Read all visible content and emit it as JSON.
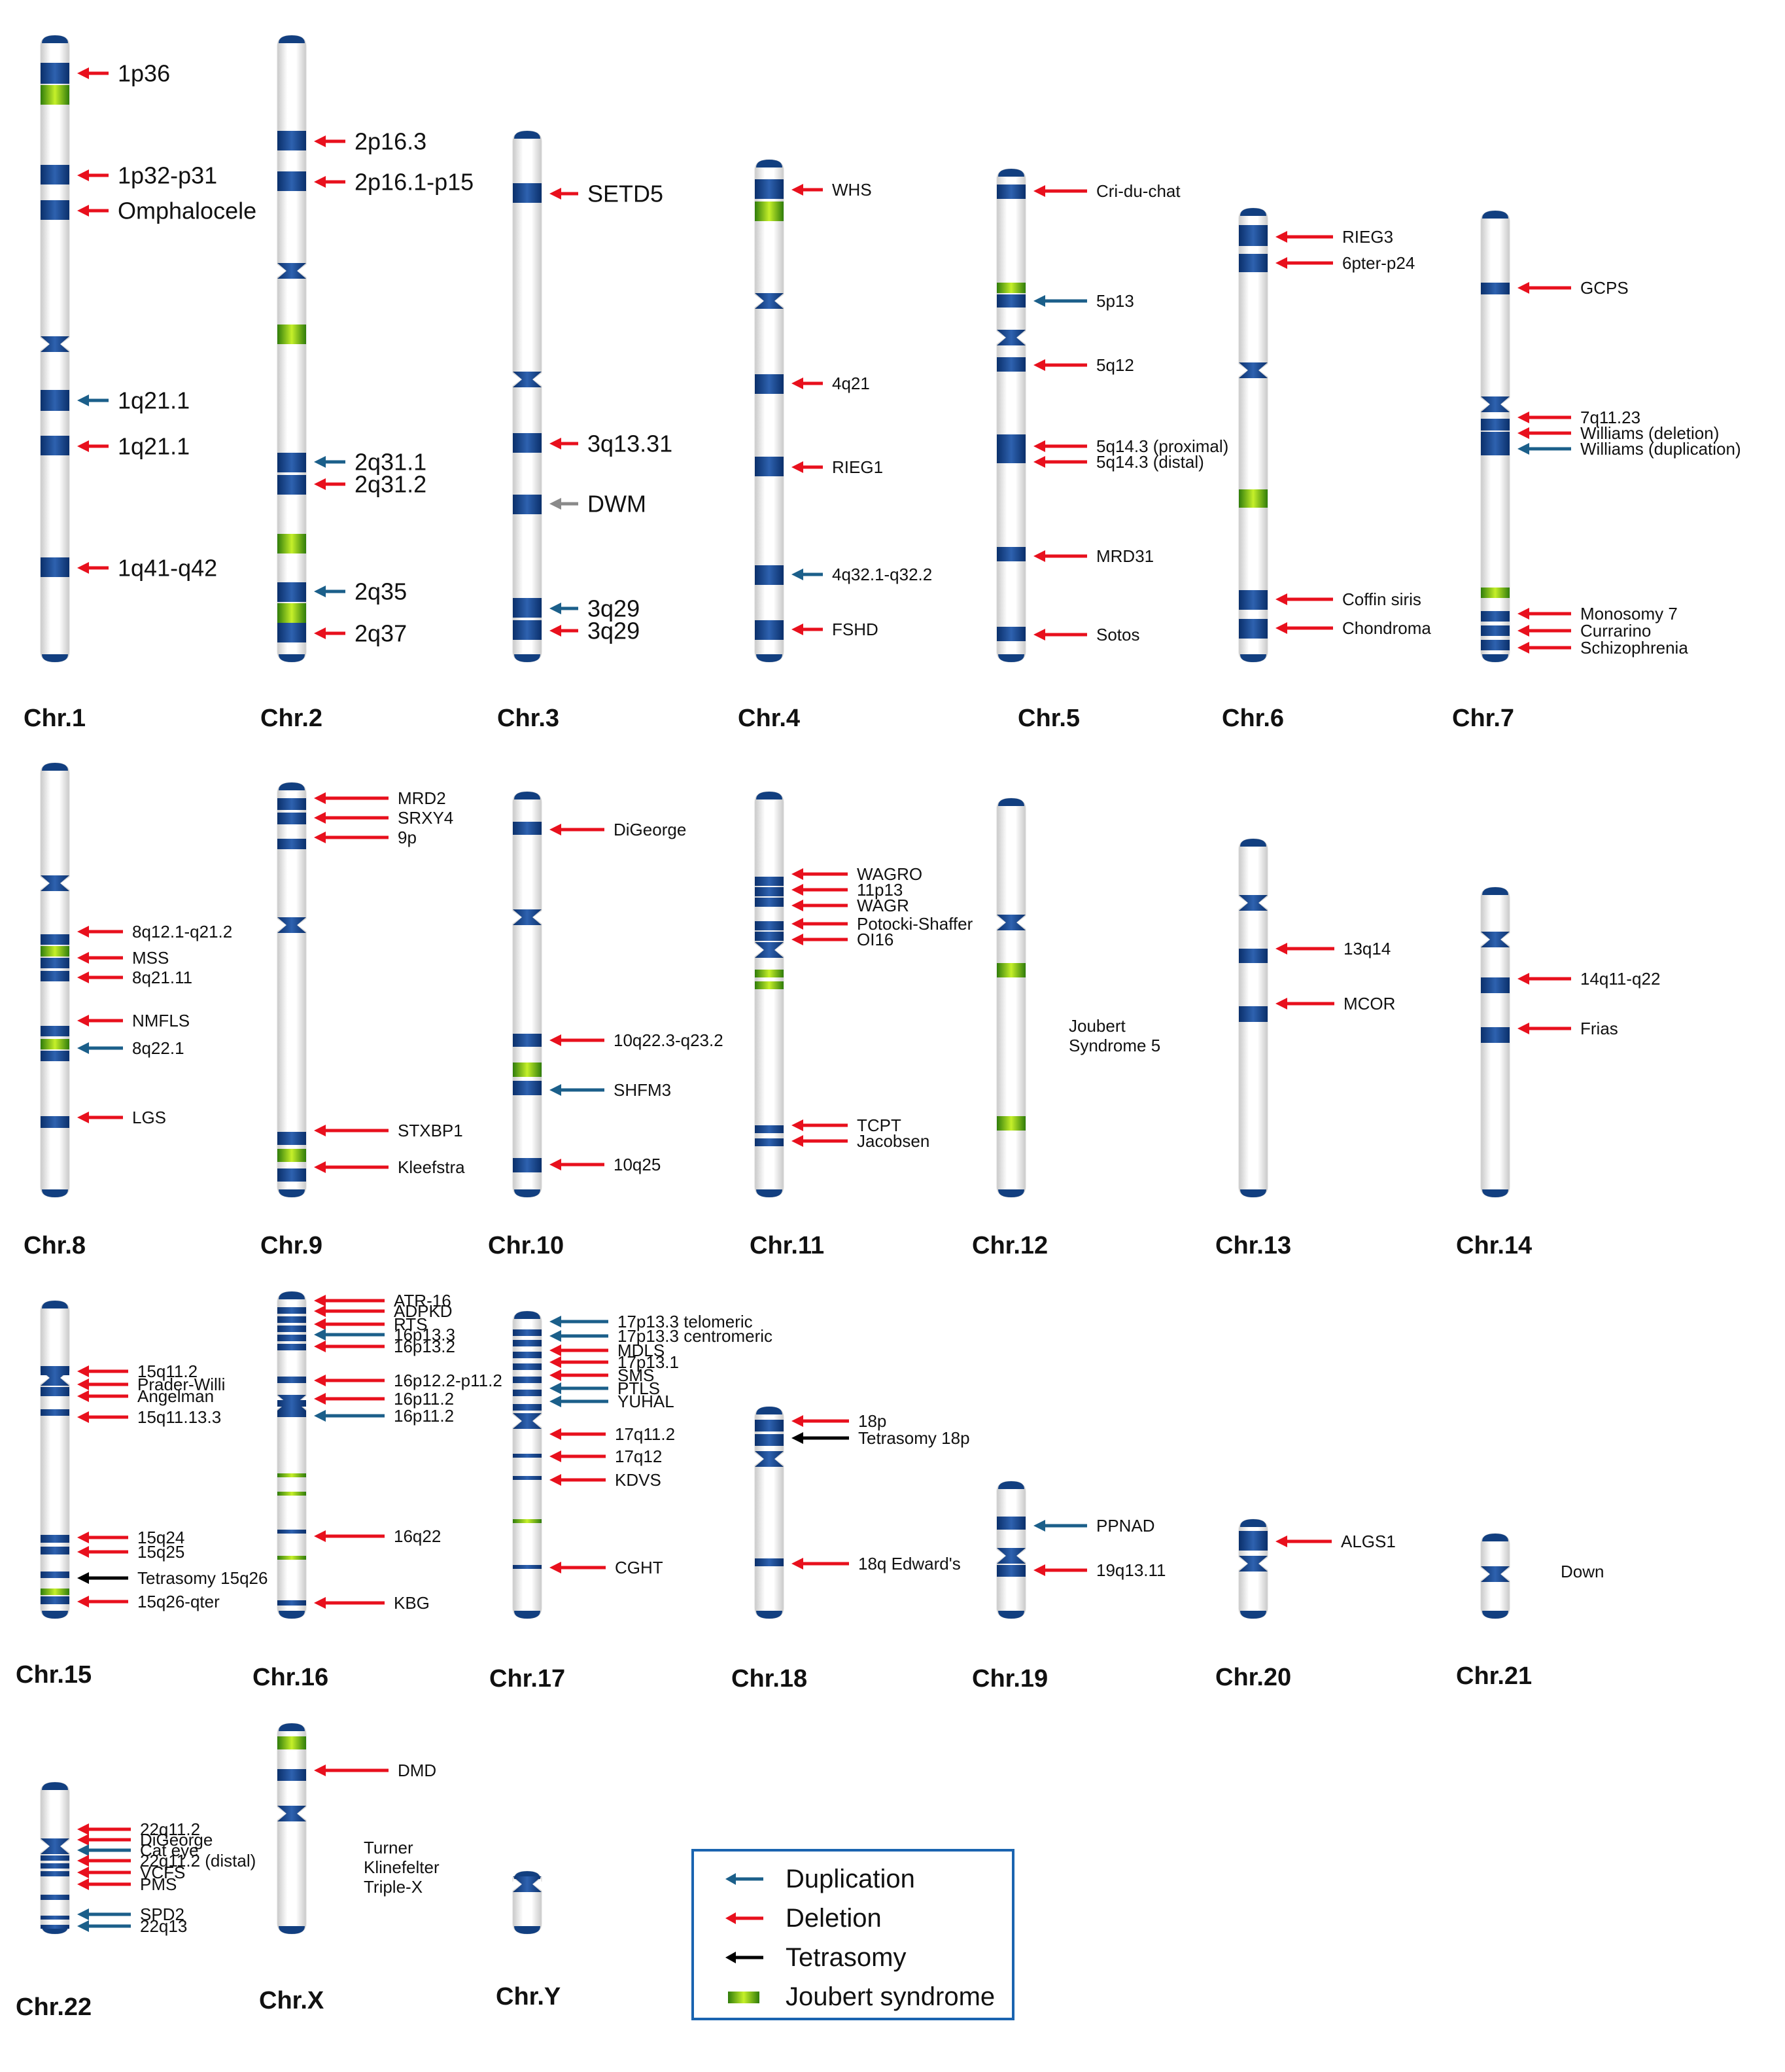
{
  "colors": {
    "duplication": "#1b5f8a",
    "deletion": "#e8101d",
    "tetrasomy": "#000000",
    "joubert": "#6bbf10",
    "band": "#0f3a78",
    "legend_border": "#1a64b0"
  },
  "legend": [
    {
      "type": "duplication",
      "label": "Duplication"
    },
    {
      "type": "deletion",
      "label": "Deletion"
    },
    {
      "type": "tetrasomy",
      "label": "Tetrasomy"
    },
    {
      "type": "joubert",
      "label": "Joubert syndrome"
    }
  ],
  "chromosomes": [
    {
      "name": "Chr.1",
      "labels": [
        {
          "text": "1p36",
          "type": "deletion"
        },
        {
          "text": "1p32-p31",
          "type": "deletion"
        },
        {
          "text": "Omphalocele",
          "type": "deletion"
        },
        {
          "text": "1q21.1",
          "type": "duplication"
        },
        {
          "text": "1q21.1",
          "type": "deletion"
        },
        {
          "text": "1q41-q42",
          "type": "deletion"
        }
      ]
    },
    {
      "name": "Chr.2",
      "labels": [
        {
          "text": "2p16.3",
          "type": "deletion"
        },
        {
          "text": "2p16.1-p15",
          "type": "deletion"
        },
        {
          "text": "2q31.1",
          "type": "duplication"
        },
        {
          "text": "2q31.2",
          "type": "deletion"
        },
        {
          "text": "2q35",
          "type": "duplication"
        },
        {
          "text": "2q37",
          "type": "deletion"
        }
      ]
    },
    {
      "name": "Chr.3",
      "labels": [
        {
          "text": "SETD5",
          "type": "deletion"
        },
        {
          "text": "3q13.31",
          "type": "deletion"
        },
        {
          "text": "DWM",
          "type": "other"
        },
        {
          "text": "3q29",
          "type": "duplication"
        },
        {
          "text": "3q29",
          "type": "deletion"
        }
      ]
    },
    {
      "name": "Chr.4",
      "labels": [
        {
          "text": "WHS",
          "type": "deletion"
        },
        {
          "text": "4q21",
          "type": "deletion"
        },
        {
          "text": "RIEG1",
          "type": "deletion"
        },
        {
          "text": "4q32.1-q32.2",
          "type": "duplication"
        },
        {
          "text": "FSHD",
          "type": "deletion"
        }
      ]
    },
    {
      "name": "Chr.5",
      "labels": [
        {
          "text": "Cri-du-chat",
          "type": "deletion"
        },
        {
          "text": "5p13",
          "type": "duplication"
        },
        {
          "text": "5q12",
          "type": "deletion"
        },
        {
          "text": "5q14.3 (proximal)",
          "type": "deletion"
        },
        {
          "text": "5q14.3 (distal)",
          "type": "deletion"
        },
        {
          "text": "MRD31",
          "type": "deletion"
        },
        {
          "text": "Sotos",
          "type": "deletion"
        }
      ]
    },
    {
      "name": "Chr.6",
      "labels": [
        {
          "text": "RIEG3",
          "type": "deletion"
        },
        {
          "text": "6pter-p24",
          "type": "deletion"
        },
        {
          "text": "Coffin siris",
          "type": "deletion"
        },
        {
          "text": "Chondroma",
          "type": "deletion"
        }
      ]
    },
    {
      "name": "Chr.7",
      "labels": [
        {
          "text": "GCPS",
          "type": "deletion"
        },
        {
          "text": "7q11.23",
          "type": "deletion"
        },
        {
          "text": "Williams (deletion)",
          "type": "deletion"
        },
        {
          "text": "Williams (duplication)",
          "type": "duplication"
        },
        {
          "text": "Monosomy 7",
          "type": "deletion"
        },
        {
          "text": "Currarino",
          "type": "deletion"
        },
        {
          "text": "Schizophrenia",
          "type": "deletion"
        }
      ]
    },
    {
      "name": "Chr.8",
      "labels": [
        {
          "text": "8q12.1-q21.2",
          "type": "deletion"
        },
        {
          "text": "MSS",
          "type": "deletion"
        },
        {
          "text": "8q21.11",
          "type": "deletion"
        },
        {
          "text": "NMFLS",
          "type": "deletion"
        },
        {
          "text": "8q22.1",
          "type": "duplication"
        },
        {
          "text": "LGS",
          "type": "deletion"
        }
      ]
    },
    {
      "name": "Chr.9",
      "labels": [
        {
          "text": "MRD2",
          "type": "deletion"
        },
        {
          "text": "SRXY4",
          "type": "deletion"
        },
        {
          "text": "9p",
          "type": "deletion"
        },
        {
          "text": "STXBP1",
          "type": "deletion"
        },
        {
          "text": "Kleefstra",
          "type": "deletion"
        }
      ]
    },
    {
      "name": "Chr.10",
      "labels": [
        {
          "text": "DiGeorge",
          "type": "deletion"
        },
        {
          "text": "10q22.3-q23.2",
          "type": "deletion"
        },
        {
          "text": "SHFM3",
          "type": "duplication"
        },
        {
          "text": "10q25",
          "type": "deletion"
        }
      ]
    },
    {
      "name": "Chr.11",
      "labels": [
        {
          "text": "WAGRO",
          "type": "deletion"
        },
        {
          "text": "11p13",
          "type": "deletion"
        },
        {
          "text": "WAGR",
          "type": "deletion"
        },
        {
          "text": "Potocki-Shaffer",
          "type": "deletion"
        },
        {
          "text": "OI16",
          "type": "deletion"
        },
        {
          "text": "TCPT",
          "type": "deletion"
        },
        {
          "text": "Jacobsen",
          "type": "deletion"
        }
      ]
    },
    {
      "name": "Chr.12",
      "labels": [
        {
          "text": "Joubert",
          "type": "none"
        },
        {
          "text": "Syndrome 5",
          "type": "none"
        }
      ]
    },
    {
      "name": "Chr.13",
      "labels": [
        {
          "text": "13q14",
          "type": "deletion"
        },
        {
          "text": "MCOR",
          "type": "deletion"
        }
      ]
    },
    {
      "name": "Chr.14",
      "labels": [
        {
          "text": "14q11-q22",
          "type": "deletion"
        },
        {
          "text": "Frias",
          "type": "deletion"
        }
      ]
    },
    {
      "name": "Chr.15",
      "labels": [
        {
          "text": "15q11.2",
          "type": "deletion"
        },
        {
          "text": "Prader-Willi",
          "type": "deletion"
        },
        {
          "text": "Angelman",
          "type": "deletion"
        },
        {
          "text": "15q11.13.3",
          "type": "deletion"
        },
        {
          "text": "15q24",
          "type": "deletion"
        },
        {
          "text": "15q25",
          "type": "deletion"
        },
        {
          "text": "Tetrasomy 15q26",
          "type": "tetrasomy"
        },
        {
          "text": "15q26-qter",
          "type": "deletion"
        }
      ]
    },
    {
      "name": "Chr.16",
      "labels": [
        {
          "text": "ATR-16",
          "type": "deletion"
        },
        {
          "text": "ADPKD",
          "type": "deletion"
        },
        {
          "text": "RTS",
          "type": "deletion"
        },
        {
          "text": "16p13.3",
          "type": "duplication"
        },
        {
          "text": "16p13.2",
          "type": "deletion"
        },
        {
          "text": "16p12.2-p11.2",
          "type": "deletion"
        },
        {
          "text": "16p11.2",
          "type": "deletion"
        },
        {
          "text": "16p11.2",
          "type": "duplication"
        },
        {
          "text": "16q22",
          "type": "deletion"
        },
        {
          "text": "KBG",
          "type": "deletion"
        }
      ]
    },
    {
      "name": "Chr.17",
      "labels": [
        {
          "text": "17p13.3 telomeric",
          "type": "duplication"
        },
        {
          "text": "17p13.3 centromeric",
          "type": "duplication"
        },
        {
          "text": "MDLS",
          "type": "deletion"
        },
        {
          "text": "17p13.1",
          "type": "deletion"
        },
        {
          "text": "SMS",
          "type": "deletion"
        },
        {
          "text": "PTLS",
          "type": "duplication"
        },
        {
          "text": "YUHAL",
          "type": "duplication"
        },
        {
          "text": "17q11.2",
          "type": "deletion"
        },
        {
          "text": "17q12",
          "type": "deletion"
        },
        {
          "text": "KDVS",
          "type": "deletion"
        },
        {
          "text": "CGHT",
          "type": "deletion"
        }
      ]
    },
    {
      "name": "Chr.18",
      "labels": [
        {
          "text": "18p",
          "type": "deletion"
        },
        {
          "text": "Tetrasomy 18p",
          "type": "tetrasomy"
        },
        {
          "text": "18q Edward's",
          "type": "deletion"
        }
      ]
    },
    {
      "name": "Chr.19",
      "labels": [
        {
          "text": "PPNAD",
          "type": "duplication"
        },
        {
          "text": "19q13.11",
          "type": "deletion"
        }
      ]
    },
    {
      "name": "Chr.20",
      "labels": [
        {
          "text": "ALGS1",
          "type": "deletion"
        }
      ]
    },
    {
      "name": "Chr.21",
      "labels": [
        {
          "text": "Down",
          "type": "none"
        }
      ]
    },
    {
      "name": "Chr.22",
      "labels": [
        {
          "text": "22q11.2",
          "type": "deletion"
        },
        {
          "text": "DiGeorge",
          "type": "deletion"
        },
        {
          "text": "Cat eye",
          "type": "duplication"
        },
        {
          "text": "22q11.2 (distal)",
          "type": "deletion"
        },
        {
          "text": "VCFS",
          "type": "deletion"
        },
        {
          "text": "PMS",
          "type": "deletion"
        },
        {
          "text": "SPD2",
          "type": "duplication"
        },
        {
          "text": "22q13",
          "type": "duplication"
        }
      ]
    },
    {
      "name": "Chr.X",
      "labels": [
        {
          "text": "DMD",
          "type": "deletion"
        },
        {
          "text": "Turner",
          "type": "none"
        },
        {
          "text": "Klinefelter",
          "type": "none"
        },
        {
          "text": "Triple-X",
          "type": "none"
        }
      ]
    },
    {
      "name": "Chr.Y",
      "labels": []
    }
  ]
}
